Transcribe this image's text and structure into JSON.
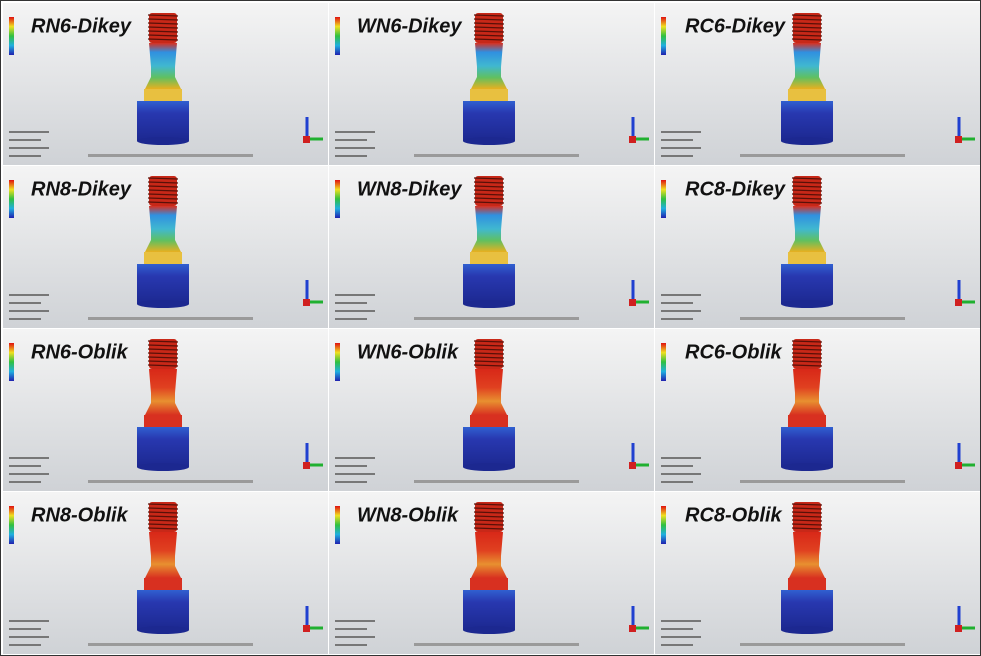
{
  "panels": [
    {
      "label": "RN6-Dikey"
    },
    {
      "label": "WN6-Dikey"
    },
    {
      "label": "RC6-Dikey"
    },
    {
      "label": "RN8-Dikey"
    },
    {
      "label": "WN8-Dikey"
    },
    {
      "label": "RC8-Dikey"
    },
    {
      "label": "RN6-Oblik"
    },
    {
      "label": "WN6-Oblik"
    },
    {
      "label": "RC6-Oblik"
    },
    {
      "label": "RN8-Oblik"
    },
    {
      "label": "WN8-Oblik"
    },
    {
      "label": "RC8-Oblik"
    }
  ]
}
